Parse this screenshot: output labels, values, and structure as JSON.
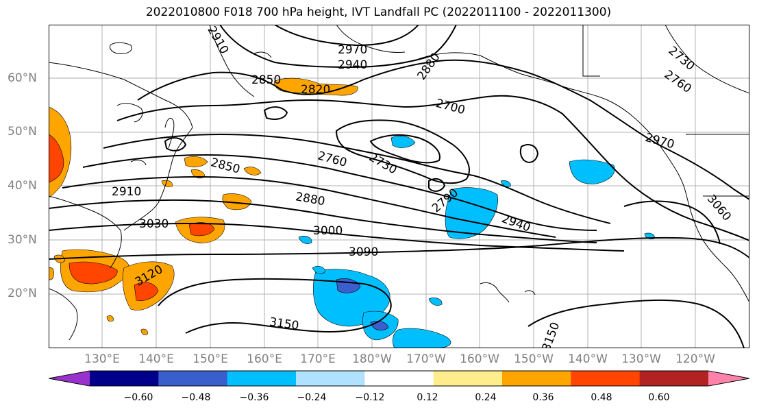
{
  "title": "2022010800 F018 700 hPa height, IVT Landfall PC (2022011100 - 2022011300)",
  "lat_labels": [
    "60°N",
    "50°N",
    "40°N",
    "30°N",
    "20°N"
  ],
  "lon_labels": [
    "130°E",
    "140°E",
    "150°E",
    "160°E",
    "170°E",
    "180°W",
    "170°W",
    "160°W",
    "150°W",
    "140°W",
    "130°W",
    "120°W"
  ],
  "contour_labels": [
    "2910",
    "2970",
    "2940",
    "2850",
    "2820",
    "2880",
    "2730",
    "2760",
    "2700",
    "2760",
    "2730",
    "2970",
    "2850",
    "2910",
    "2880",
    "2790",
    "3030",
    "3000",
    "2940",
    "3060",
    "3090",
    "3120",
    "3150",
    "3150"
  ],
  "colorbar": {
    "ticks": [
      "−0.60",
      "−0.48",
      "−0.36",
      "−0.24",
      "−0.12",
      "0.12",
      "0.24",
      "0.36",
      "0.48",
      "0.60"
    ],
    "colors": [
      "#9932cc",
      "#00008b",
      "#3a5fcd",
      "#00bfff",
      "#b0e2ff",
      "#ffffff",
      "#ffec8b",
      "#ffa500",
      "#ff4500",
      "#b22222",
      "#ff82ab"
    ]
  },
  "colors": {
    "positive": "#ffa500",
    "strong_positive": "#ff4500",
    "negative": "#00bfff",
    "strong_negative": "#3a5fcd"
  }
}
